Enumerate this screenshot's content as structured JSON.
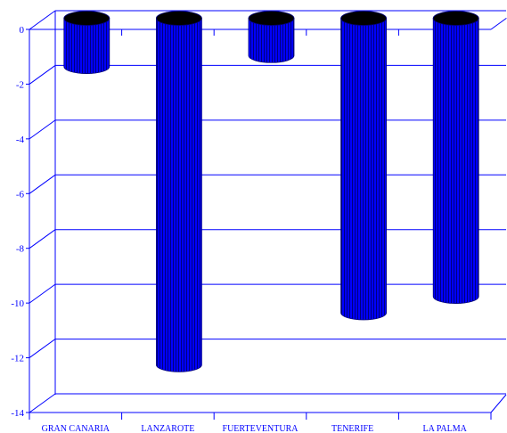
{
  "chart_data": {
    "type": "bar",
    "categories": [
      "GRAN CANARIA",
      "LANZAROTE",
      "FUERTEVENTURA",
      "TENERIFE",
      "LA PALMA"
    ],
    "values": [
      -1.5,
      -12.4,
      -1.1,
      -10.5,
      -9.9
    ],
    "ylim": [
      -14,
      0
    ],
    "yticks": [
      0,
      -2,
      -4,
      -6,
      -8,
      -10,
      -12,
      -14
    ],
    "ytick_labels": [
      "0",
      "-2",
      "-4",
      "-6",
      "-8",
      "-10",
      "-12",
      "-14"
    ],
    "grid": true,
    "colors": {
      "bar": "#0000ff",
      "bar_stripe": "#00007a",
      "bar_top": "#000000",
      "axis": "#0000ff"
    }
  }
}
